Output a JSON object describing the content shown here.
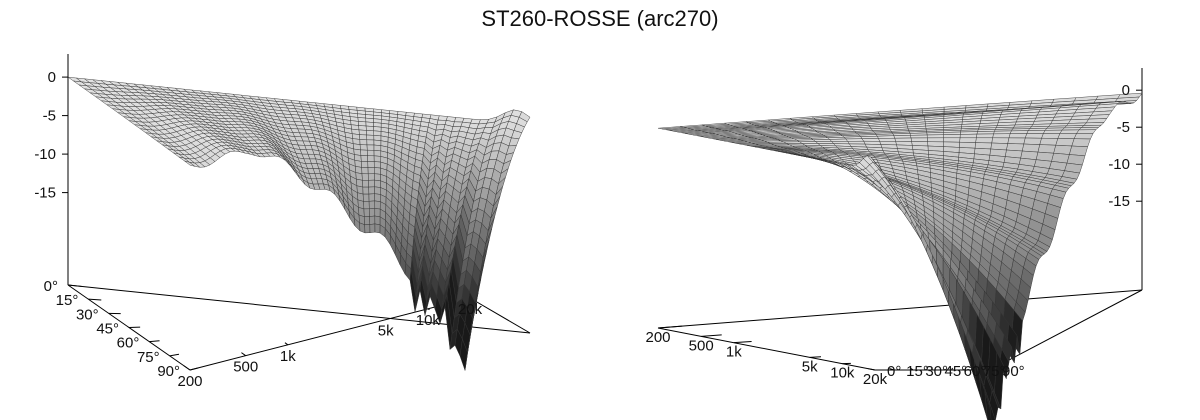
{
  "title": "ST260-ROSSE (arc270)",
  "colors": {
    "surface_light": "#e0e0e0",
    "surface_dark": "#1a1a1a",
    "grid": "#333333",
    "axis": "#000000"
  },
  "chart_data": [
    {
      "type": "surface",
      "name": "left-plot",
      "frequency_ticks": [
        "200",
        "500",
        "1k",
        "5k",
        "10k",
        "20k"
      ],
      "frequency_values": [
        200,
        500,
        1000,
        5000,
        10000,
        20000
      ],
      "x_scale": "log",
      "angle_ticks": [
        "0°",
        "15°",
        "30°",
        "45°",
        "60°",
        "75°",
        "90°"
      ],
      "angle_values": [
        0,
        15,
        30,
        45,
        60,
        75,
        90
      ],
      "level_ticks": [
        "0",
        "-5",
        "-10",
        "-15"
      ],
      "level_values": [
        0,
        -5,
        -10,
        -15
      ],
      "zlim": [
        -27,
        3
      ]
    },
    {
      "type": "surface",
      "name": "right-plot",
      "frequency_ticks": [
        "200",
        "500",
        "1k",
        "5k",
        "10k",
        "20k"
      ],
      "frequency_values": [
        200,
        500,
        1000,
        5000,
        10000,
        20000
      ],
      "x_scale": "log",
      "angle_ticks": [
        "0°",
        "15°",
        "30°",
        "45°",
        "60°",
        "75°",
        "90°"
      ],
      "angle_values": [
        0,
        15,
        30,
        45,
        60,
        75,
        90
      ],
      "level_ticks": [
        "0",
        "-5",
        "-10",
        "-15"
      ],
      "level_values": [
        0,
        -5,
        -10,
        -15
      ],
      "zlim": [
        -27,
        3
      ]
    }
  ]
}
